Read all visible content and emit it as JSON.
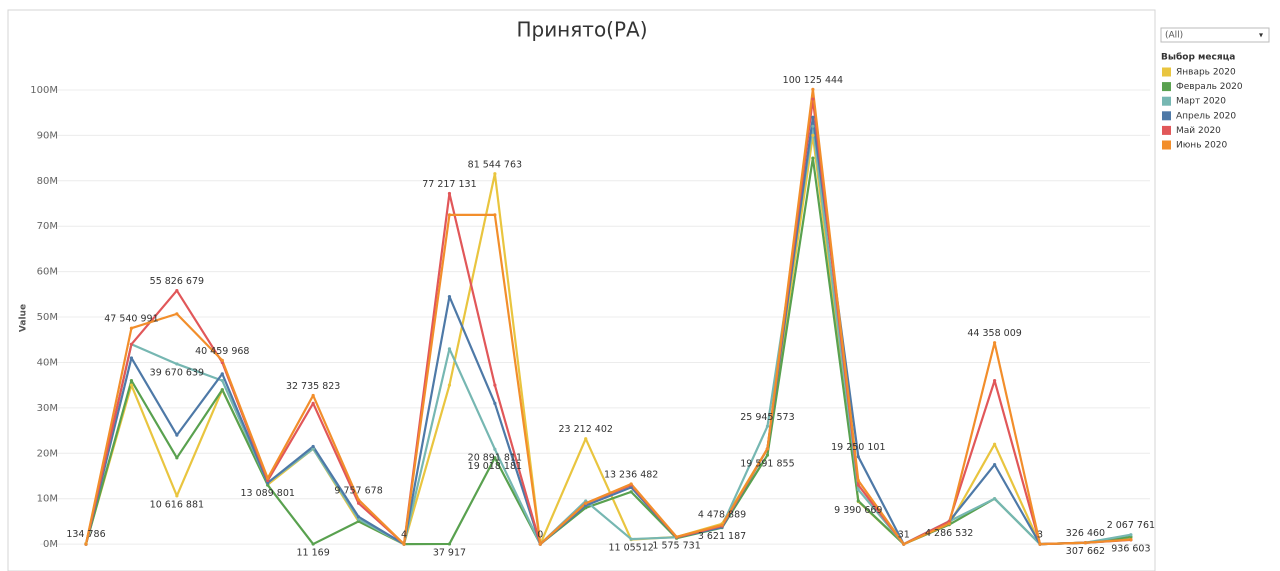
{
  "chart_data": {
    "type": "line",
    "title": "Принято(РА)",
    "y_label": "Value",
    "legend_title": "Выбор месяца",
    "filter_value": "(All)",
    "legend": "right",
    "grid": true,
    "categories": [
      null,
      null,
      null,
      null,
      null,
      null,
      null,
      null,
      null,
      null,
      null,
      null,
      null,
      null,
      null,
      null,
      null,
      null,
      null,
      null,
      null,
      null,
      null,
      null
    ],
    "ylim": [
      -4.6,
      106.6
    ],
    "yticks": [
      {
        "value": 0,
        "label": "0M"
      },
      {
        "value": 10,
        "label": "10M"
      },
      {
        "value": 20,
        "label": "20M"
      },
      {
        "value": 30,
        "label": "30M"
      },
      {
        "value": 40,
        "label": "40M"
      },
      {
        "value": 50,
        "label": "50M"
      },
      {
        "value": 60,
        "label": "60M"
      },
      {
        "value": 70,
        "label": "70M"
      },
      {
        "value": 80,
        "label": "80M"
      },
      {
        "value": 90,
        "label": "90M"
      },
      {
        "value": 100,
        "label": "100M"
      }
    ],
    "series": [
      {
        "name": "Январь 2020",
        "color": "#e9c53f",
        "values": [
          0.134786,
          35,
          10.616881,
          34,
          13.089801,
          21,
          5,
          0,
          35,
          81.544763,
          0,
          23.212402,
          1,
          1.575731,
          4.478889,
          21,
          90,
          9.390669,
          0,
          4.3,
          22,
          0,
          0.32646,
          1.5
        ],
        "value_labels": [
          "134 786",
          null,
          "10 616 881",
          null,
          "13 089 801",
          null,
          null,
          null,
          null,
          "81 544 763",
          "0",
          "23 212 402",
          null,
          "1 575 731",
          "4 478 889",
          null,
          null,
          "9 390 669",
          null,
          null,
          null,
          null,
          "326 460",
          null
        ]
      },
      {
        "name": "Февраль 2020",
        "color": "#59a14f",
        "values": [
          0,
          36,
          19,
          34,
          13,
          0.011169,
          5,
          4e-06,
          0.037917,
          19.018181,
          0,
          8,
          11.5,
          1.3,
          3.621187,
          19.591855,
          85,
          9.5,
          3.1e-05,
          4.286532,
          10,
          3e-06,
          0.307662,
          1.6
        ],
        "value_labels": [
          null,
          null,
          null,
          null,
          null,
          "11 169",
          null,
          "4",
          "37 917",
          "19 018 181",
          null,
          null,
          null,
          null,
          "3 621 187",
          "19 591 855",
          null,
          null,
          "31",
          "4 286 532",
          null,
          "3",
          "307 662",
          null
        ]
      },
      {
        "name": "Март 2020",
        "color": "#76b7b2",
        "values": [
          0,
          44,
          39.670639,
          36,
          13.5,
          21,
          5.5,
          0,
          43,
          20.891811,
          0,
          9.5,
          1.105512,
          1.5,
          4,
          25.945573,
          92,
          12,
          0,
          5,
          10,
          0,
          0.3,
          2.067761
        ],
        "value_labels": [
          null,
          null,
          "39 670 639",
          null,
          null,
          null,
          null,
          null,
          null,
          "20 891 811",
          null,
          null,
          "11 05512",
          null,
          null,
          "25 945 573",
          null,
          null,
          null,
          null,
          null,
          null,
          null,
          "2 067 761"
        ]
      },
      {
        "name": "Апрель 2020",
        "color": "#4e79a7",
        "values": [
          0,
          41,
          24,
          37.5,
          13.5,
          21.5,
          6,
          0,
          54.5,
          31,
          0,
          8.5,
          12.5,
          1.5,
          3.7,
          21,
          94,
          19.250101,
          0,
          5,
          17.5,
          0,
          0.3,
          1
        ],
        "value_labels": [
          null,
          null,
          null,
          null,
          null,
          null,
          null,
          null,
          null,
          null,
          null,
          null,
          null,
          null,
          null,
          null,
          null,
          "19 250 101",
          null,
          null,
          null,
          null,
          null,
          null
        ]
      },
      {
        "name": "Май 2020",
        "color": "#e15759",
        "values": [
          0,
          44,
          55.826679,
          40,
          14,
          31,
          9,
          0,
          77.217131,
          35,
          0,
          9,
          13,
          1.5,
          4,
          21,
          98,
          13,
          0,
          5,
          36,
          0,
          0.3,
          0.936603
        ],
        "value_labels": [
          null,
          null,
          "55 826 679",
          null,
          null,
          null,
          null,
          null,
          "77 217 131",
          null,
          null,
          null,
          null,
          null,
          null,
          null,
          null,
          null,
          null,
          null,
          null,
          null,
          null,
          "936 603"
        ]
      },
      {
        "name": "Июнь 2020",
        "color": "#f28e2b",
        "values": [
          0,
          47.540991,
          50.7,
          40.459968,
          14.5,
          32.735823,
          9.757678,
          0,
          72.5,
          72.5,
          0,
          9,
          13.236482,
          1.6,
          4.2,
          21,
          100.125444,
          14,
          0,
          4.5,
          44.358009,
          0,
          0.3,
          1
        ],
        "value_labels": [
          null,
          "47 540 991",
          null,
          "40 459 968",
          null,
          "32 735 823",
          "9 757 678",
          null,
          null,
          null,
          null,
          null,
          "13 236 482",
          null,
          null,
          null,
          "100 125 444",
          null,
          null,
          null,
          "44 358 009",
          null,
          null,
          null
        ]
      }
    ]
  }
}
